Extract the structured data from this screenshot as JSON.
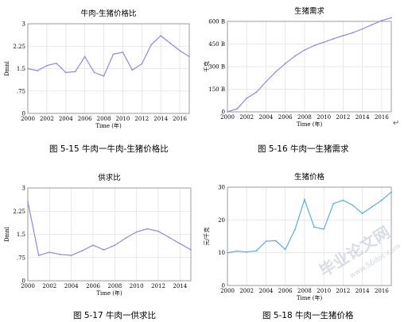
{
  "chart_data": [
    {
      "id": "p1",
      "type": "line",
      "title": "牛肉-生猪价格比",
      "xlabel": "Time (年)",
      "ylabel": "Dmnl",
      "xlim": [
        2000,
        2017
      ],
      "ylim": [
        0,
        3
      ],
      "xticks": [
        2000,
        2002,
        2004,
        2006,
        2008,
        2010,
        2012,
        2014,
        2016
      ],
      "xtick_labels": [
        "2000",
        "2002",
        "2004",
        "2006",
        "2008",
        "2010",
        "2012",
        "2014",
        "2016"
      ],
      "yticks": [
        0,
        0.75,
        1.5,
        2.25,
        3
      ],
      "ytick_labels": [
        "0",
        ".75",
        "1.5",
        "2.25",
        "3"
      ],
      "grid": true,
      "color": "#8a8ae8",
      "x": [
        2000,
        2001,
        2002,
        2003,
        2004,
        2005,
        2006,
        2007,
        2008,
        2009,
        2010,
        2011,
        2012,
        2013,
        2014,
        2015,
        2016,
        2017
      ],
      "y": [
        1.5,
        1.43,
        1.6,
        1.68,
        1.37,
        1.4,
        1.9,
        1.37,
        1.25,
        1.98,
        2.05,
        1.45,
        1.66,
        2.3,
        2.6,
        2.35,
        2.1,
        1.9
      ],
      "caption": "图 5-15  牛肉一牛肉-生猪价格比"
    },
    {
      "id": "p2",
      "type": "line",
      "title": "生猪需求",
      "xlabel": "Time (年)",
      "ylabel": "千克",
      "xlim": [
        2000,
        2017
      ],
      "ylim": [
        0,
        600
      ],
      "xticks": [
        2000,
        2002,
        2004,
        2006,
        2008,
        2010,
        2012,
        2014,
        2016
      ],
      "xtick_labels": [
        "2000",
        "2002",
        "2004",
        "2006",
        "2008",
        "2010",
        "2012",
        "2014",
        "2016"
      ],
      "yticks": [
        0,
        150,
        300,
        450,
        600
      ],
      "ytick_labels": [
        "0",
        "150 B",
        "300 B",
        "450 B",
        "600 B"
      ],
      "grid": true,
      "color": "#8a8ae8",
      "x": [
        2000,
        2001,
        2002,
        2003,
        2004,
        2005,
        2006,
        2007,
        2008,
        2009,
        2010,
        2011,
        2012,
        2013,
        2014,
        2015,
        2016,
        2017
      ],
      "y": [
        0,
        20,
        90,
        130,
        200,
        265,
        320,
        370,
        410,
        440,
        462,
        485,
        505,
        525,
        550,
        578,
        605,
        625
      ],
      "caption": "图 5-16  牛肉一生猪需求"
    },
    {
      "id": "p3",
      "type": "line",
      "title": "供求比",
      "xlabel": "Time (年)",
      "ylabel": "Dmnl",
      "xlim": [
        2000,
        2015
      ],
      "ylim": [
        0,
        3
      ],
      "xticks": [
        2000,
        2002,
        2004,
        2006,
        2008,
        2010,
        2012,
        2014
      ],
      "xtick_labels": [
        "2000",
        "2002",
        "2004",
        "2006",
        "2008",
        "2010",
        "2012",
        "2014"
      ],
      "yticks": [
        0,
        0.75,
        1.5,
        2.25,
        3
      ],
      "ytick_labels": [
        "0",
        ".75",
        "1.5",
        "2.25",
        "3"
      ],
      "grid": true,
      "color": "#8a8ae8",
      "x": [
        2000,
        2001,
        2002,
        2003,
        2004,
        2005,
        2006,
        2007,
        2008,
        2009,
        2010,
        2011,
        2012,
        2013,
        2014,
        2015
      ],
      "y": [
        2.55,
        0.82,
        0.92,
        0.85,
        0.82,
        0.97,
        1.15,
        1.0,
        1.15,
        1.38,
        1.58,
        1.68,
        1.6,
        1.4,
        1.2,
        1.0
      ],
      "caption": "图 5-17  牛肉一供求比"
    },
    {
      "id": "p4",
      "type": "line",
      "title": "生猪价格",
      "xlabel": "Time (年)",
      "ylabel": "元/千克",
      "xlim": [
        2000,
        2017
      ],
      "ylim": [
        0,
        30
      ],
      "xticks": [
        2000,
        2002,
        2004,
        2006,
        2008,
        2010,
        2012,
        2014,
        2016
      ],
      "xtick_labels": [
        "2000",
        "2002",
        "2004",
        "2006",
        "2008",
        "2010",
        "2012",
        "2014",
        "2016"
      ],
      "yticks": [
        0,
        10,
        20,
        30
      ],
      "ytick_labels": [
        "0",
        "10",
        "20",
        "30"
      ],
      "grid": true,
      "color": "#5aaee0",
      "x": [
        2000,
        2001,
        2002,
        2003,
        2004,
        2005,
        2006,
        2007,
        2008,
        2009,
        2010,
        2011,
        2012,
        2013,
        2014,
        2015,
        2016,
        2017
      ],
      "y": [
        10,
        10.5,
        10.2,
        10.6,
        13.5,
        13.7,
        11,
        17,
        26.2,
        17.8,
        17.2,
        25,
        26,
        24.5,
        22,
        24,
        26,
        28.5
      ],
      "caption": "图 5-18  牛肉一生猪价格"
    }
  ],
  "watermark": "毕业论文网",
  "watermark_url": "www.56doc.com",
  "return_symbol": "↵"
}
